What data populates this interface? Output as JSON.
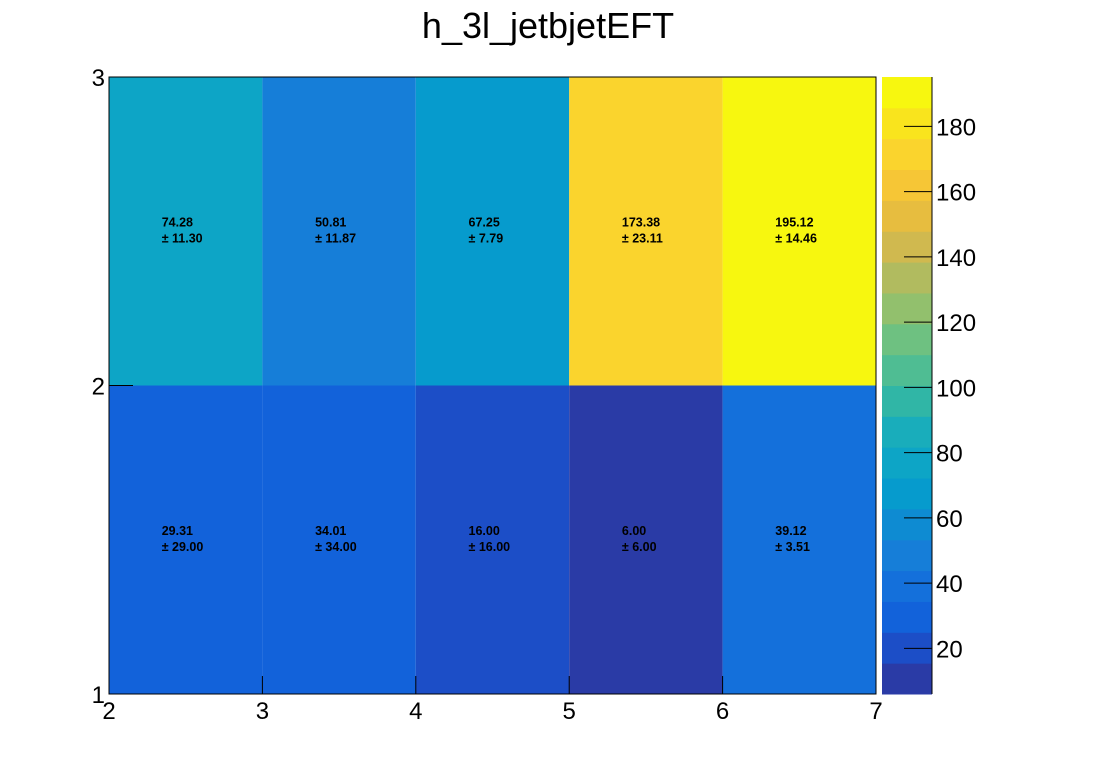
{
  "chart_data": {
    "type": "heatmap",
    "title": "h_3l_jetbjetEFT",
    "xlabel": "",
    "ylabel": "",
    "x_edges": [
      2,
      3,
      4,
      5,
      6,
      7
    ],
    "y_edges": [
      1,
      2,
      3
    ],
    "xlim": [
      2,
      7
    ],
    "ylim": [
      1,
      3
    ],
    "x_ticks": [
      "2",
      "3",
      "4",
      "5",
      "6",
      "7"
    ],
    "y_ticks": [
      "1",
      "2",
      "3"
    ],
    "cells": [
      {
        "x": 2.5,
        "y": 1.5,
        "value": 29.31,
        "error": 29.0,
        "value_label": "29.31",
        "error_label": "± 29.00"
      },
      {
        "x": 3.5,
        "y": 1.5,
        "value": 34.01,
        "error": 34.0,
        "value_label": "34.01",
        "error_label": "± 34.00"
      },
      {
        "x": 4.5,
        "y": 1.5,
        "value": 16.0,
        "error": 16.0,
        "value_label": "16.00",
        "error_label": "± 16.00"
      },
      {
        "x": 5.5,
        "y": 1.5,
        "value": 6.0,
        "error": 6.0,
        "value_label": "6.00",
        "error_label": "± 6.00"
      },
      {
        "x": 6.5,
        "y": 1.5,
        "value": 39.12,
        "error": 3.51,
        "value_label": "39.12",
        "error_label": "± 3.51"
      },
      {
        "x": 2.5,
        "y": 2.5,
        "value": 74.28,
        "error": 11.3,
        "value_label": "74.28",
        "error_label": "± 11.30"
      },
      {
        "x": 3.5,
        "y": 2.5,
        "value": 50.81,
        "error": 11.87,
        "value_label": "50.81",
        "error_label": "± 11.87"
      },
      {
        "x": 4.5,
        "y": 2.5,
        "value": 67.25,
        "error": 7.79,
        "value_label": "67.25",
        "error_label": "± 7.79"
      },
      {
        "x": 5.5,
        "y": 2.5,
        "value": 173.38,
        "error": 23.11,
        "value_label": "173.38",
        "error_label": "± 23.11"
      },
      {
        "x": 6.5,
        "y": 2.5,
        "value": 195.12,
        "error": 14.46,
        "value_label": "195.12",
        "error_label": "± 14.46"
      }
    ],
    "colorbar": {
      "zlim": [
        6,
        195.12
      ],
      "ticks": [
        20,
        40,
        60,
        80,
        100,
        120,
        140,
        160,
        180
      ],
      "palette": [
        "#2a3ba6",
        "#1c4ec7",
        "#1262da",
        "#1470db",
        "#167ed8",
        "#0e8bd2",
        "#069bcd",
        "#0da5c6",
        "#19adbb",
        "#30b6a6",
        "#4fbd93",
        "#6ec181",
        "#92c06d",
        "#b1bb5f",
        "#d0b94f",
        "#e7bd3f",
        "#f6c636",
        "#fad42d",
        "#f9e41d",
        "#f7f70f"
      ]
    },
    "grid": false,
    "legend": "none"
  }
}
